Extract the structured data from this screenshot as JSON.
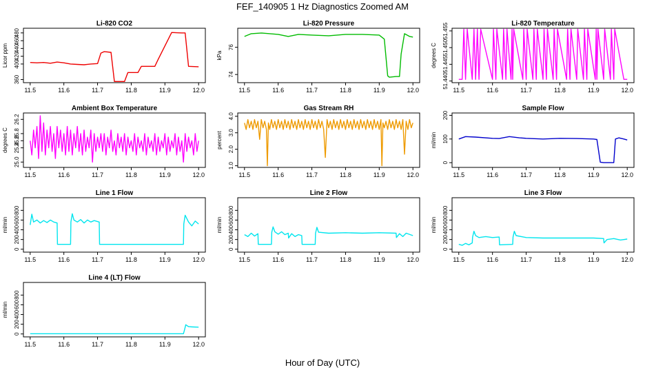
{
  "figure": {
    "title": "FEF_140905  1 Hz Diagnostics Zoomed AM",
    "xlabel": "Hour of Day (UTC)"
  },
  "chart_data": [
    {
      "type": "line",
      "title": "Li-820 CO2",
      "ylabel": "Licor ppm",
      "color": "#ee0000",
      "xlim": [
        11.5,
        12.0
      ],
      "xticks": [
        "11.5",
        "11.6",
        "11.7",
        "11.8",
        "11.9",
        "12.0"
      ],
      "ylim": [
        352,
        492
      ],
      "yticks": [
        {
          "v": 360,
          "label": "360"
        },
        {
          "v": 400,
          "label": "400"
        },
        {
          "v": 420,
          "label": "420"
        },
        {
          "v": 440,
          "label": "440"
        },
        {
          "v": 460,
          "label": "460"
        },
        {
          "v": 480,
          "label": "480"
        }
      ],
      "x": [
        11.5,
        11.52,
        11.54,
        11.56,
        11.58,
        11.6,
        11.62,
        11.64,
        11.66,
        11.68,
        11.7,
        11.71,
        11.72,
        11.74,
        11.75,
        11.78,
        11.79,
        11.82,
        11.83,
        11.87,
        11.88,
        11.92,
        11.95,
        11.96,
        11.97,
        12.0
      ],
      "y": [
        404,
        403,
        404,
        402,
        405,
        403,
        400,
        399,
        398,
        400,
        401,
        428,
        432,
        430,
        355,
        355,
        378,
        378,
        394,
        394,
        412,
        481,
        480,
        480,
        394,
        393
      ]
    },
    {
      "type": "line",
      "title": "Li-820 Pressure",
      "ylabel": "kPa",
      "color": "#00bb00",
      "xlim": [
        11.5,
        12.0
      ],
      "xticks": [
        "11.5",
        "11.6",
        "11.7",
        "11.8",
        "11.9",
        "12.0"
      ],
      "ylim": [
        73.4,
        77.4
      ],
      "yticks": [
        {
          "v": 74,
          "label": "74"
        },
        {
          "v": 76,
          "label": "76"
        }
      ],
      "x": [
        11.5,
        11.52,
        11.55,
        11.6,
        11.63,
        11.66,
        11.7,
        11.75,
        11.8,
        11.85,
        11.9,
        11.915,
        11.925,
        11.93,
        11.95,
        11.96,
        11.965,
        11.975,
        11.99,
        12.0
      ],
      "y": [
        76.8,
        77.0,
        77.05,
        76.95,
        76.8,
        76.95,
        76.9,
        76.85,
        76.95,
        76.95,
        76.9,
        76.6,
        73.9,
        73.8,
        73.85,
        73.85,
        75.5,
        77.0,
        76.8,
        76.75
      ]
    },
    {
      "type": "line",
      "title": "Li-820 Temperature",
      "ylabel": "degrees C",
      "color": "#ff00ff",
      "xlim": [
        11.5,
        12.0
      ],
      "xticks": [
        "11.5",
        "11.6",
        "11.7",
        "11.8",
        "11.9",
        "12.0"
      ],
      "ylim": [
        51.4395,
        51.4558
      ],
      "yticks": [
        {
          "v": 51.44,
          "label": "51.440"
        },
        {
          "v": 51.445,
          "label": "51.445"
        },
        {
          "v": 51.45,
          "label": "51.450"
        },
        {
          "v": 51.455,
          "label": "51.455"
        }
      ],
      "x": [
        11.5,
        11.51,
        11.515,
        11.52,
        11.525,
        11.54,
        11.545,
        11.55,
        11.555,
        11.56,
        11.565,
        11.6,
        11.603,
        11.61,
        11.613,
        11.63,
        11.633,
        11.64,
        11.643,
        11.655,
        11.658,
        11.66,
        11.663,
        11.69,
        11.693,
        11.7,
        11.703,
        11.72,
        11.723,
        11.73,
        11.733,
        11.75,
        11.753,
        11.76,
        11.763,
        11.78,
        11.783,
        11.79,
        11.793,
        11.82,
        11.823,
        11.83,
        11.833,
        11.85,
        11.853,
        11.87,
        11.873,
        11.88,
        11.883,
        11.905,
        11.908,
        11.91,
        11.913,
        11.93,
        11.933,
        11.95,
        11.953,
        11.96,
        11.963,
        11.99,
        12.0
      ],
      "y": [
        51.4405,
        51.4405,
        51.4555,
        51.4405,
        51.4555,
        51.4405,
        51.4555,
        51.4405,
        51.4555,
        51.4405,
        51.4555,
        51.4405,
        51.4555,
        51.4405,
        51.4555,
        51.4405,
        51.4555,
        51.4405,
        51.4555,
        51.4405,
        51.4555,
        51.4405,
        51.4555,
        51.4405,
        51.4555,
        51.4405,
        51.4555,
        51.4405,
        51.4555,
        51.4405,
        51.4555,
        51.4405,
        51.4555,
        51.4405,
        51.4555,
        51.4405,
        51.4555,
        51.4405,
        51.4555,
        51.4405,
        51.4555,
        51.4405,
        51.4555,
        51.4405,
        51.4555,
        51.4405,
        51.4555,
        51.4405,
        51.4555,
        51.4405,
        51.4555,
        51.4405,
        51.4555,
        51.4405,
        51.4555,
        51.4405,
        51.4555,
        51.4405,
        51.4555,
        51.4405,
        51.4405
      ]
    },
    {
      "type": "line",
      "title": "Ambient Box Temperature",
      "ylabel": "degrees C",
      "color": "#ff00ff",
      "xlim": [
        11.5,
        12.0
      ],
      "xticks": [
        "11.5",
        "11.6",
        "11.7",
        "11.8",
        "11.9",
        "12.0"
      ],
      "ylim": [
        24.85,
        26.38
      ],
      "yticks": [
        {
          "v": 25.0,
          "label": "25.0"
        },
        {
          "v": 25.4,
          "label": "25.4"
        },
        {
          "v": 25.6,
          "label": "25.6"
        },
        {
          "v": 25.8,
          "label": "25.8"
        },
        {
          "v": 26.2,
          "label": "26.2"
        }
      ],
      "x": [
        11.5,
        11.505,
        11.51,
        11.515,
        11.52,
        11.525,
        11.53,
        11.535,
        11.54,
        11.545,
        11.55,
        11.555,
        11.56,
        11.565,
        11.57,
        11.575,
        11.58,
        11.585,
        11.59,
        11.595,
        11.6,
        11.605,
        11.61,
        11.615,
        11.62,
        11.625,
        11.63,
        11.635,
        11.64,
        11.645,
        11.65,
        11.655,
        11.66,
        11.665,
        11.67,
        11.675,
        11.68,
        11.685,
        11.69,
        11.695,
        11.7,
        11.705,
        11.71,
        11.715,
        11.72,
        11.725,
        11.73,
        11.735,
        11.74,
        11.745,
        11.75,
        11.755,
        11.76,
        11.765,
        11.77,
        11.775,
        11.78,
        11.785,
        11.79,
        11.795,
        11.8,
        11.805,
        11.81,
        11.815,
        11.82,
        11.825,
        11.83,
        11.835,
        11.84,
        11.845,
        11.85,
        11.855,
        11.86,
        11.865,
        11.87,
        11.875,
        11.88,
        11.885,
        11.89,
        11.895,
        11.9,
        11.905,
        11.91,
        11.915,
        11.92,
        11.925,
        11.93,
        11.935,
        11.94,
        11.945,
        11.95,
        11.955,
        11.96,
        11.965,
        11.97,
        11.975,
        11.98,
        11.985,
        11.99,
        11.995,
        12.0
      ],
      "y": [
        25.6,
        25.2,
        25.9,
        25.4,
        26.0,
        25.1,
        26.3,
        25.3,
        26.1,
        25.2,
        25.9,
        25.4,
        26.0,
        25.3,
        25.8,
        25.1,
        26.0,
        25.4,
        25.9,
        25.3,
        25.8,
        25.2,
        26.0,
        25.3,
        25.9,
        25.2,
        25.8,
        25.4,
        26.0,
        25.3,
        25.8,
        25.2,
        25.9,
        25.3,
        25.7,
        25.4,
        25.9,
        25.0,
        25.8,
        25.3,
        25.7,
        25.4,
        25.8,
        25.3,
        25.8,
        25.2,
        25.7,
        25.4,
        25.9,
        25.3,
        25.6,
        25.2,
        25.8,
        25.4,
        25.7,
        25.3,
        25.8,
        25.2,
        25.7,
        25.4,
        25.6,
        25.3,
        25.8,
        25.2,
        25.7,
        25.4,
        25.6,
        25.3,
        25.8,
        25.2,
        25.7,
        25.4,
        25.6,
        25.3,
        25.8,
        25.2,
        25.7,
        25.3,
        25.6,
        25.4,
        25.8,
        25.2,
        25.7,
        25.3,
        25.6,
        25.4,
        25.8,
        25.2,
        25.7,
        25.3,
        25.6,
        25.0,
        25.8,
        25.3,
        25.7,
        25.4,
        25.6,
        25.2,
        25.8,
        25.3,
        25.6
      ]
    },
    {
      "type": "line",
      "title": "Gas Stream RH",
      "ylabel": "percent",
      "color": "#ee9a00",
      "xlim": [
        11.5,
        12.0
      ],
      "xticks": [
        "11.5",
        "11.6",
        "11.7",
        "11.8",
        "11.9",
        "12.0"
      ],
      "ylim": [
        0.9,
        4.2
      ],
      "yticks": [
        {
          "v": 1.0,
          "label": "1.0"
        },
        {
          "v": 2.0,
          "label": "2.0"
        },
        {
          "v": 3.0,
          "label": "3.0"
        },
        {
          "v": 4.0,
          "label": "4.0"
        }
      ],
      "x": [
        11.5,
        11.505,
        11.51,
        11.515,
        11.52,
        11.525,
        11.53,
        11.535,
        11.54,
        11.545,
        11.55,
        11.555,
        11.56,
        11.565,
        11.568,
        11.571,
        11.575,
        11.58,
        11.585,
        11.59,
        11.595,
        11.6,
        11.605,
        11.61,
        11.615,
        11.62,
        11.625,
        11.63,
        11.635,
        11.64,
        11.645,
        11.65,
        11.655,
        11.66,
        11.665,
        11.67,
        11.675,
        11.68,
        11.685,
        11.69,
        11.695,
        11.7,
        11.705,
        11.71,
        11.715,
        11.72,
        11.725,
        11.73,
        11.735,
        11.74,
        11.745,
        11.75,
        11.755,
        11.76,
        11.765,
        11.77,
        11.775,
        11.78,
        11.785,
        11.79,
        11.795,
        11.8,
        11.805,
        11.81,
        11.815,
        11.82,
        11.825,
        11.83,
        11.835,
        11.84,
        11.845,
        11.85,
        11.855,
        11.86,
        11.865,
        11.87,
        11.875,
        11.88,
        11.885,
        11.89,
        11.895,
        11.9,
        11.905,
        11.908,
        11.911,
        11.915,
        11.92,
        11.925,
        11.93,
        11.935,
        11.94,
        11.945,
        11.95,
        11.955,
        11.96,
        11.965,
        11.97,
        11.975,
        11.98,
        11.985,
        11.99,
        11.995,
        12.0
      ],
      "y": [
        3.6,
        3.2,
        3.8,
        3.3,
        3.7,
        3.2,
        3.8,
        3.3,
        3.7,
        2.6,
        3.8,
        3.3,
        3.7,
        3.2,
        1.0,
        3.6,
        3.2,
        3.8,
        3.3,
        3.7,
        3.2,
        3.8,
        3.3,
        3.7,
        3.2,
        3.8,
        3.3,
        3.7,
        3.2,
        3.8,
        3.3,
        3.7,
        3.2,
        3.8,
        3.3,
        3.7,
        3.2,
        3.8,
        3.3,
        3.7,
        3.2,
        3.8,
        3.3,
        3.7,
        3.2,
        3.8,
        3.3,
        3.7,
        3.2,
        1.5,
        3.8,
        3.3,
        3.7,
        3.2,
        3.8,
        3.3,
        3.7,
        3.2,
        3.8,
        3.3,
        3.7,
        3.2,
        3.8,
        3.3,
        3.7,
        3.2,
        3.8,
        3.3,
        3.7,
        3.2,
        3.8,
        3.3,
        3.7,
        3.2,
        3.8,
        3.3,
        3.7,
        3.2,
        3.8,
        3.3,
        3.7,
        3.2,
        3.8,
        1.0,
        3.6,
        3.3,
        3.7,
        3.2,
        3.8,
        3.3,
        3.7,
        3.2,
        3.8,
        3.3,
        3.7,
        3.2,
        3.8,
        1.7,
        3.7,
        3.2,
        3.8,
        3.3,
        3.6
      ]
    },
    {
      "type": "line",
      "title": "Sample Flow",
      "ylabel": "ml/min",
      "color": "#0000cc",
      "xlim": [
        11.5,
        12.0
      ],
      "xticks": [
        "11.5",
        "11.6",
        "11.7",
        "11.8",
        "11.9",
        "12.0"
      ],
      "ylim": [
        -20,
        210
      ],
      "yticks": [
        {
          "v": 0,
          "label": "0"
        },
        {
          "v": 100,
          "label": "100"
        },
        {
          "v": 200,
          "label": "200"
        }
      ],
      "x": [
        11.5,
        11.52,
        11.55,
        11.6,
        11.62,
        11.65,
        11.68,
        11.7,
        11.75,
        11.8,
        11.85,
        11.9,
        11.91,
        11.92,
        11.93,
        11.96,
        11.965,
        11.975,
        11.99,
        12.0
      ],
      "y": [
        100,
        110,
        108,
        103,
        102,
        110,
        105,
        103,
        100,
        103,
        102,
        100,
        98,
        2,
        0,
        0,
        100,
        105,
        100,
        96
      ]
    },
    {
      "type": "line",
      "title": "Line 1 Flow",
      "ylabel": "ml/min",
      "color": "#00e5ee",
      "xlim": [
        11.5,
        12.0
      ],
      "xticks": [
        "11.5",
        "11.6",
        "11.7",
        "11.8",
        "11.9",
        "12.0"
      ],
      "ylim": [
        -60,
        1060
      ],
      "yticks": [
        {
          "v": 0,
          "label": "0"
        },
        {
          "v": 200,
          "label": "200"
        },
        {
          "v": 400,
          "label": "400"
        },
        {
          "v": 600,
          "label": "600"
        },
        {
          "v": 800,
          "label": "800"
        }
      ],
      "x": [
        11.5,
        11.505,
        11.51,
        11.52,
        11.53,
        11.54,
        11.55,
        11.56,
        11.57,
        11.58,
        11.581,
        11.62,
        11.621,
        11.625,
        11.63,
        11.64,
        11.65,
        11.66,
        11.67,
        11.68,
        11.69,
        11.705,
        11.706,
        11.955,
        11.956,
        11.96,
        11.97,
        11.98,
        11.99,
        12.0
      ],
      "y": [
        500,
        720,
        560,
        600,
        540,
        590,
        550,
        600,
        560,
        540,
        100,
        100,
        560,
        730,
        600,
        560,
        610,
        540,
        600,
        560,
        590,
        560,
        100,
        100,
        520,
        700,
        560,
        480,
        580,
        520
      ]
    },
    {
      "type": "line",
      "title": "Line 2 Flow",
      "ylabel": "ml/min",
      "color": "#00e5ee",
      "xlim": [
        11.5,
        12.0
      ],
      "xticks": [
        "11.5",
        "11.6",
        "11.7",
        "11.8",
        "11.9",
        "12.0"
      ],
      "ylim": [
        -60,
        1060
      ],
      "yticks": [
        {
          "v": 0,
          "label": "0"
        },
        {
          "v": 200,
          "label": "200"
        },
        {
          "v": 400,
          "label": "400"
        },
        {
          "v": 600,
          "label": "600"
        },
        {
          "v": 800,
          "label": "800"
        }
      ],
      "x": [
        11.5,
        11.51,
        11.52,
        11.53,
        11.54,
        11.541,
        11.58,
        11.581,
        11.585,
        11.59,
        11.6,
        11.61,
        11.62,
        11.63,
        11.631,
        11.64,
        11.65,
        11.66,
        11.67,
        11.671,
        11.71,
        11.711,
        11.715,
        11.72,
        11.75,
        11.8,
        11.85,
        11.9,
        11.95,
        11.951,
        11.96,
        11.97,
        11.98,
        12.0
      ],
      "y": [
        300,
        260,
        330,
        270,
        320,
        100,
        100,
        350,
        460,
        360,
        310,
        360,
        300,
        330,
        230,
        320,
        260,
        300,
        280,
        100,
        100,
        330,
        450,
        350,
        330,
        340,
        330,
        340,
        330,
        240,
        320,
        260,
        330,
        280
      ]
    },
    {
      "type": "line",
      "title": "Line 3 Flow",
      "ylabel": "ml/min",
      "color": "#00e5ee",
      "xlim": [
        11.5,
        12.0
      ],
      "xticks": [
        "11.5",
        "11.6",
        "11.7",
        "11.8",
        "11.9",
        "12.0"
      ],
      "ylim": [
        -60,
        1060
      ],
      "yticks": [
        {
          "v": 0,
          "label": "0"
        },
        {
          "v": 200,
          "label": "200"
        },
        {
          "v": 400,
          "label": "400"
        },
        {
          "v": 600,
          "label": "600"
        },
        {
          "v": 800,
          "label": "800"
        }
      ],
      "x": [
        11.5,
        11.51,
        11.52,
        11.53,
        11.54,
        11.541,
        11.545,
        11.55,
        11.56,
        11.58,
        11.6,
        11.62,
        11.621,
        11.66,
        11.661,
        11.665,
        11.67,
        11.7,
        11.75,
        11.8,
        11.85,
        11.9,
        11.93,
        11.931,
        11.94,
        11.96,
        11.98,
        12.0
      ],
      "y": [
        100,
        80,
        120,
        90,
        130,
        250,
        370,
        280,
        240,
        260,
        240,
        250,
        90,
        100,
        250,
        370,
        280,
        240,
        230,
        230,
        230,
        230,
        220,
        130,
        200,
        220,
        190,
        210
      ]
    },
    {
      "type": "line",
      "title": "Line 4 (LT) Flow",
      "ylabel": "ml/min",
      "color": "#00e5ee",
      "xlim": [
        11.5,
        12.0
      ],
      "xticks": [
        "11.5",
        "11.6",
        "11.7",
        "11.8",
        "11.9",
        "12.0"
      ],
      "ylim": [
        -60,
        1060
      ],
      "yticks": [
        {
          "v": 0,
          "label": "0"
        },
        {
          "v": 200,
          "label": "200"
        },
        {
          "v": 400,
          "label": "400"
        },
        {
          "v": 600,
          "label": "600"
        },
        {
          "v": 800,
          "label": "800"
        }
      ],
      "x": [
        11.5,
        11.6,
        11.7,
        11.8,
        11.9,
        11.955,
        11.958,
        11.962,
        11.97,
        11.98,
        12.0
      ],
      "y": [
        5,
        5,
        5,
        5,
        5,
        5,
        80,
        190,
        150,
        145,
        140
      ]
    }
  ]
}
